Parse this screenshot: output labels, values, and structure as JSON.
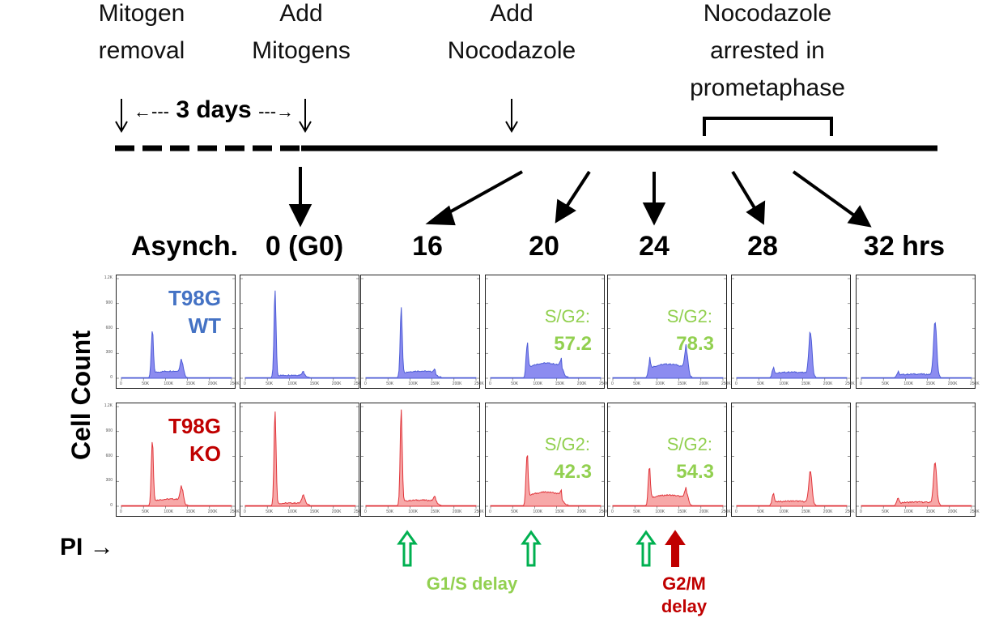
{
  "headers": [
    {
      "id": "mitogen-removal",
      "text": "Mitogen\nremoval"
    },
    {
      "id": "add-mitogens",
      "text": "Add\nMitogens"
    },
    {
      "id": "add-nocodazole",
      "text": "Add\nNocodazole"
    },
    {
      "id": "nocodazole-arrested",
      "text": "Nocodazole\narrested in\nprometaphase"
    }
  ],
  "duration": {
    "left_arrow": "←---",
    "label": "3 days",
    "right_arrow": "---→"
  },
  "timepoints": [
    "Asynch.",
    "0 (G0)",
    "16",
    "20",
    "24",
    "28",
    "32 hrs"
  ],
  "y_axis_label": "Cell Count",
  "x_axis_label": {
    "text": "PI",
    "arrow": "→"
  },
  "rows": [
    {
      "cell_line": "T98G\nWT",
      "color": "#4d5cd6",
      "fill": "#8c8cf0",
      "label_color": "#4472c4",
      "yticks": [
        "1.2K",
        "900",
        "600",
        "300",
        "0"
      ]
    },
    {
      "cell_line": "T98G\nKO",
      "color": "#e0343a",
      "fill": "#f7a8a8",
      "label_color": "#c00000",
      "yticks": [
        "1.2K",
        "900",
        "600",
        "300",
        "0"
      ]
    }
  ],
  "xticks": [
    "0",
    "50K",
    "100K",
    "150K",
    "200K",
    "250K"
  ],
  "sg2": [
    {
      "row": 0,
      "col": 3,
      "label": "S/G2:",
      "value": "57.2"
    },
    {
      "row": 0,
      "col": 4,
      "label": "S/G2:",
      "value": "78.3"
    },
    {
      "row": 1,
      "col": 3,
      "label": "S/G2:",
      "value": "42.3"
    },
    {
      "row": 1,
      "col": 4,
      "label": "S/G2:",
      "value": "54.3"
    }
  ],
  "notes": [
    {
      "id": "g1s-delay",
      "text": "G1/S delay",
      "color": "#92d050"
    },
    {
      "id": "g2m-delay",
      "text": "G2/M\ndelay",
      "color": "#c00000"
    }
  ],
  "colors": {
    "green_arrow": "#00b050",
    "red_arrow": "#c00000"
  },
  "histograms": {
    "note": "relative peak heights (fraction of panel height) per timepoint column",
    "wt": [
      {
        "g1": 0.46,
        "g2": 0.15,
        "s": 0.06
      },
      {
        "g1": 0.86,
        "g2": 0.04,
        "s": 0.02
      },
      {
        "g1": 0.67,
        "g2": 0.03,
        "s": 0.06
      },
      {
        "g1": 0.3,
        "g2": 0.09,
        "s": 0.14
      },
      {
        "g1": 0.13,
        "g2": 0.25,
        "s": 0.13
      },
      {
        "g1": 0.08,
        "g2": 0.44,
        "s": 0.05
      },
      {
        "g1": 0.04,
        "g2": 0.55,
        "s": 0.03
      }
    ],
    "ko": [
      {
        "g1": 0.64,
        "g2": 0.16,
        "s": 0.06
      },
      {
        "g1": 0.94,
        "g2": 0.09,
        "s": 0.02
      },
      {
        "g1": 0.93,
        "g2": 0.05,
        "s": 0.05
      },
      {
        "g1": 0.49,
        "g2": 0.05,
        "s": 0.13
      },
      {
        "g1": 0.36,
        "g2": 0.12,
        "s": 0.1
      },
      {
        "g1": 0.11,
        "g2": 0.33,
        "s": 0.04
      },
      {
        "g1": 0.06,
        "g2": 0.42,
        "s": 0.03
      }
    ]
  }
}
